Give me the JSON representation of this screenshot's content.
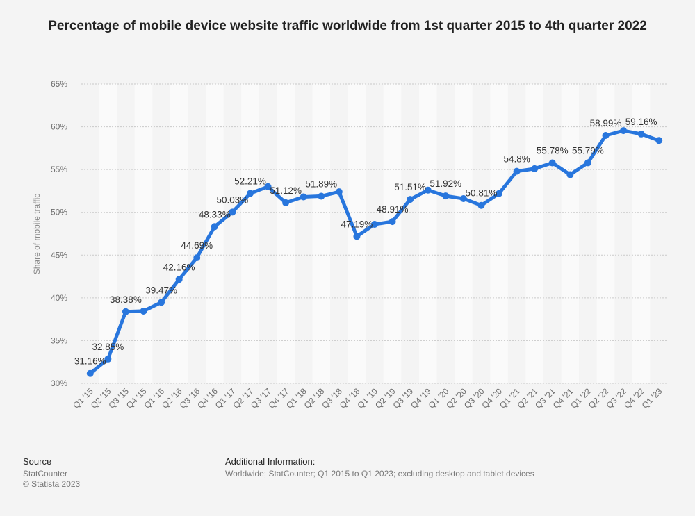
{
  "chart_data": {
    "type": "line",
    "title": "Percentage of mobile device website traffic worldwide from 1st quarter 2015 to 4th quarter 2022",
    "ylabel": "Share of mobile traffic",
    "xlabel": "",
    "ylim": [
      30,
      65
    ],
    "yticks": [
      "30%",
      "35%",
      "40%",
      "45%",
      "50%",
      "55%",
      "60%",
      "65%"
    ],
    "grid": true,
    "color": "#2876dd",
    "categories": [
      "Q1 '15",
      "Q2 '15",
      "Q3 '15",
      "Q4 '15",
      "Q1 '16",
      "Q2 '16",
      "Q3 '16",
      "Q4 '16",
      "Q1 '17",
      "Q2 '17",
      "Q3 '17",
      "Q4 '17",
      "Q1 '18",
      "Q2 '18",
      "Q3 '18",
      "Q4 '18",
      "Q1 '19",
      "Q2 '19",
      "Q3 '19",
      "Q4 '19",
      "Q1 '20",
      "Q2 '20",
      "Q3 '20",
      "Q4 '20",
      "Q1 '21",
      "Q2 '21",
      "Q3 '21",
      "Q4 '21",
      "Q1 '22",
      "Q2 '22",
      "Q3 '22",
      "Q4 '22",
      "Q1 '23"
    ],
    "values": [
      31.16,
      32.85,
      38.38,
      38.45,
      39.47,
      42.16,
      44.69,
      48.33,
      50.03,
      52.21,
      53.0,
      51.12,
      51.8,
      51.89,
      52.4,
      47.19,
      48.6,
      48.91,
      51.51,
      52.6,
      51.92,
      51.6,
      50.81,
      52.2,
      54.8,
      55.1,
      55.78,
      54.4,
      55.79,
      58.99,
      59.55,
      59.16,
      58.4
    ],
    "data_labels": [
      {
        "index": 0,
        "text": "31.16%"
      },
      {
        "index": 1,
        "text": "32.85%"
      },
      {
        "index": 2,
        "text": "38.38%"
      },
      {
        "index": 4,
        "text": "39.47%"
      },
      {
        "index": 5,
        "text": "42.16%"
      },
      {
        "index": 6,
        "text": "44.69%"
      },
      {
        "index": 7,
        "text": "48.33%"
      },
      {
        "index": 8,
        "text": "50.03%"
      },
      {
        "index": 9,
        "text": "52.21%"
      },
      {
        "index": 11,
        "text": "51.12%"
      },
      {
        "index": 13,
        "text": "51.89%"
      },
      {
        "index": 15,
        "text": "47.19%"
      },
      {
        "index": 17,
        "text": "48.91%"
      },
      {
        "index": 18,
        "text": "51.51%"
      },
      {
        "index": 20,
        "text": "51.92%"
      },
      {
        "index": 22,
        "text": "50.81%"
      },
      {
        "index": 24,
        "text": "54.8%"
      },
      {
        "index": 26,
        "text": "55.78%"
      },
      {
        "index": 28,
        "text": "55.79%"
      },
      {
        "index": 29,
        "text": "58.99%"
      },
      {
        "index": 31,
        "text": "59.16%"
      }
    ]
  },
  "footer": {
    "source_heading": "Source",
    "source_name": "StatCounter",
    "copyright": "© Statista 2023",
    "info_heading": "Additional Information:",
    "info_text": "Worldwide; StatCounter; Q1 2015 to Q1 2023; excluding desktop and tablet devices"
  }
}
